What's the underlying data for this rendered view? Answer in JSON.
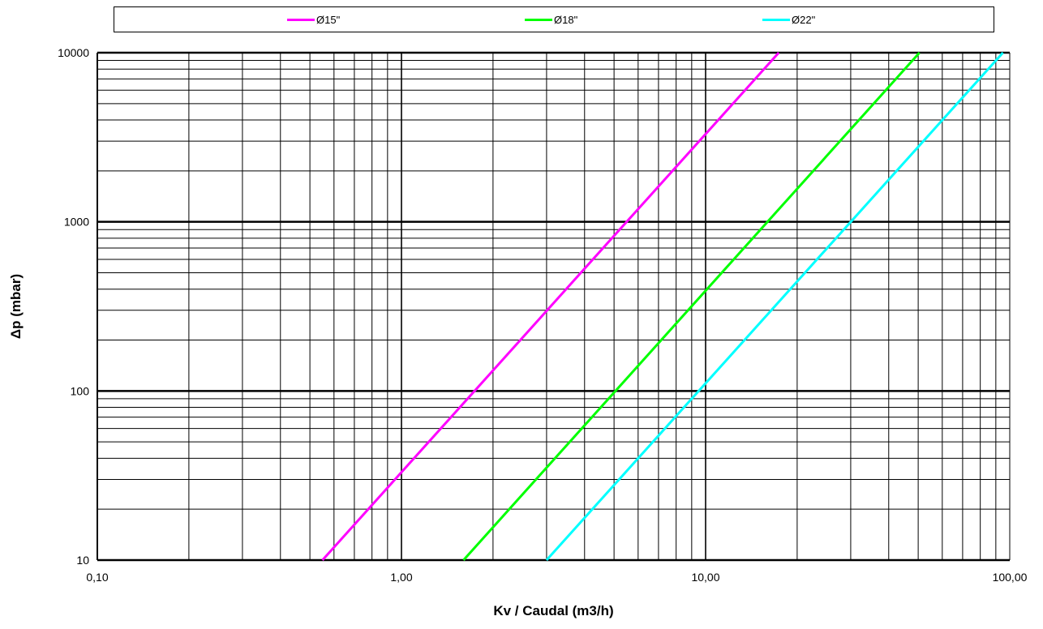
{
  "legend": {
    "entries": [
      "Ø15\"",
      "Ø18\"",
      "Ø22\""
    ]
  },
  "chart_data": {
    "type": "line",
    "title": "",
    "xlabel": "Kv / Caudal (m3/h)",
    "ylabel": "Δp (mbar)",
    "x_scale": "log",
    "y_scale": "log",
    "xlim": [
      0.1,
      100
    ],
    "ylim": [
      10,
      10000
    ],
    "x_tick_labels": [
      "0,10",
      "1,00",
      "10,00",
      "100,00"
    ],
    "y_tick_labels": [
      "10",
      "100",
      "1000",
      "10000"
    ],
    "x_ticks": [
      0.1,
      1,
      10,
      100
    ],
    "y_ticks": [
      10,
      100,
      1000,
      10000
    ],
    "grid": true,
    "legend_position": "top",
    "series": [
      {
        "name": "Ø15\"",
        "color": "#ff00ff",
        "x": [
          0.55,
          17.4
        ],
        "y": [
          10,
          10000
        ]
      },
      {
        "name": "Ø18\"",
        "color": "#00ff00",
        "x": [
          1.6,
          50.5
        ],
        "y": [
          10,
          10000
        ]
      },
      {
        "name": "Ø22\"",
        "color": "#00ffff",
        "x": [
          3.0,
          95.0
        ],
        "y": [
          10,
          10000
        ]
      }
    ]
  }
}
